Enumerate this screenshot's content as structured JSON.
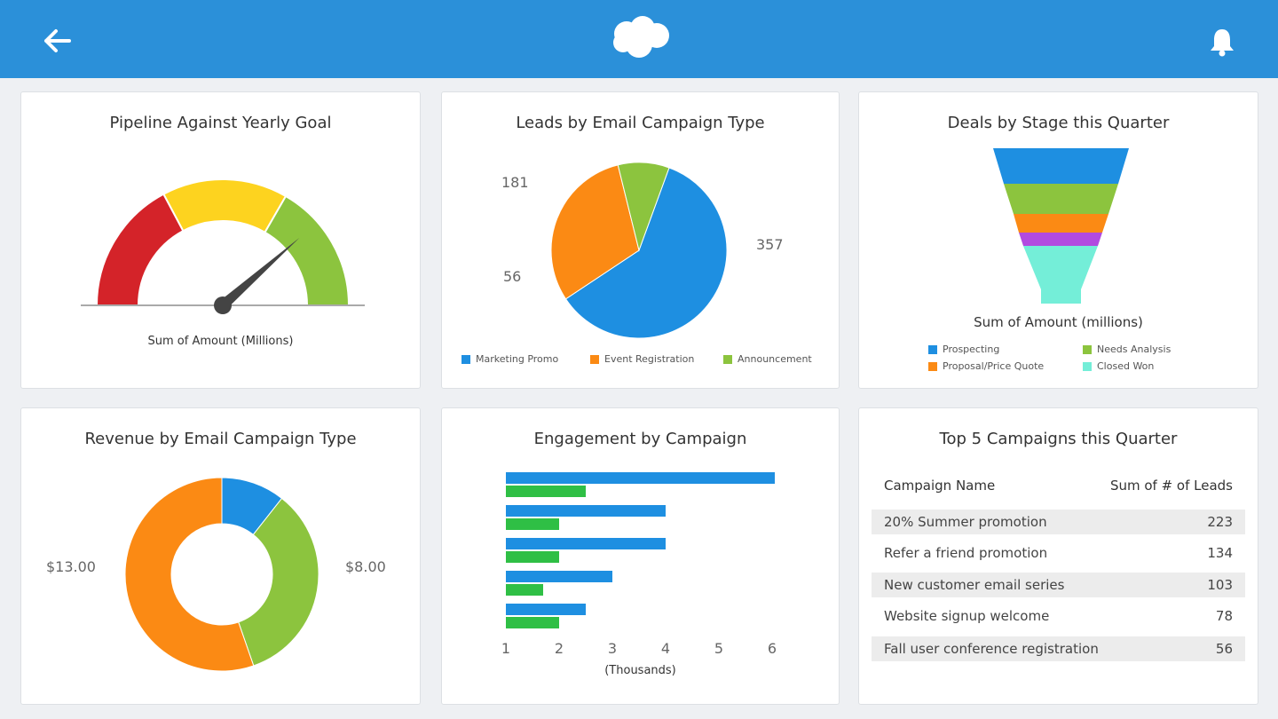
{
  "header": {
    "back_icon": "arrow-left-icon",
    "logo": "cloud-logo",
    "notification_icon": "bell-icon",
    "color": "#2b90d9"
  },
  "cards": {
    "gauge": {
      "title": "Pipeline Against Yearly Goal",
      "caption": "Sum of Amount (Millions)",
      "value_fraction": 0.77,
      "bands": [
        {
          "color": "#d42329"
        },
        {
          "color": "#fdd31f"
        },
        {
          "color": "#8cc43e"
        }
      ]
    },
    "leads": {
      "title": "Leads by Email Campaign Type"
    },
    "deals": {
      "title": "Deals by Stage this Quarter",
      "caption": "Sum of Amount (millions)"
    },
    "revenue": {
      "title": "Revenue by Email Campaign Type"
    },
    "engagement": {
      "title": "Engagement by Campaign",
      "xlabel": "(Thousands)"
    },
    "top5": {
      "title": "Top 5 Campaigns this Quarter",
      "col1": "Campaign Name",
      "col2": "Sum of # of Leads",
      "rows": [
        {
          "name": "20% Summer promotion",
          "value": "223"
        },
        {
          "name": "Refer a friend promotion",
          "value": "134"
        },
        {
          "name": "New customer email series",
          "value": "103"
        },
        {
          "name": "Website signup welcome",
          "value": "78"
        },
        {
          "name": "Fall user conference registration",
          "value": "56"
        }
      ]
    }
  },
  "chart_data": [
    {
      "type": "pie",
      "title": "Leads by Email Campaign Type",
      "categories": [
        "Marketing Promo",
        "Event Registration",
        "Announcement"
      ],
      "values": [
        357,
        181,
        56
      ],
      "labels": [
        "357",
        "181",
        "56"
      ],
      "colors": [
        "#1e8fe1",
        "#fb8a14",
        "#8cc43e"
      ],
      "legend": "bottom"
    },
    {
      "type": "funnel",
      "title": "Deals by Stage this Quarter",
      "categories": [
        "Prospecting",
        "Needs Analysis",
        "Proposal/Price Quote",
        "",
        "Closed Won"
      ],
      "colors": [
        "#1e8fe1",
        "#8cc43e",
        "#fb8a14",
        "#b24ae0",
        "#74eed8"
      ],
      "legend": [
        {
          "label": "Prospecting",
          "color": "#1e8fe1"
        },
        {
          "label": "Needs Analysis",
          "color": "#8cc43e"
        },
        {
          "label": "Proposal/Price Quote",
          "color": "#fb8a14"
        },
        {
          "label": "Closed Won",
          "color": "#74eed8"
        }
      ]
    },
    {
      "type": "donut",
      "title": "Revenue by Email Campaign Type",
      "values": [
        2.5,
        8,
        13
      ],
      "labels": [
        "",
        "$8.00",
        "$13.00"
      ],
      "colors": [
        "#1e8fe1",
        "#8cc43e",
        "#fb8a14"
      ]
    },
    {
      "type": "bar",
      "orientation": "horizontal",
      "title": "Engagement by Campaign",
      "xlabel": "(Thousands)",
      "xlim": [
        1,
        6
      ],
      "xticks": [
        "1",
        "2",
        "3",
        "4",
        "5",
        "6"
      ],
      "series": [
        {
          "values": [
            6.05,
            4,
            4,
            3,
            2.5
          ],
          "color": "#1e8fe1"
        },
        {
          "values": [
            2.5,
            2,
            2,
            1.7,
            2
          ],
          "color": "#2fbf45"
        }
      ]
    }
  ]
}
